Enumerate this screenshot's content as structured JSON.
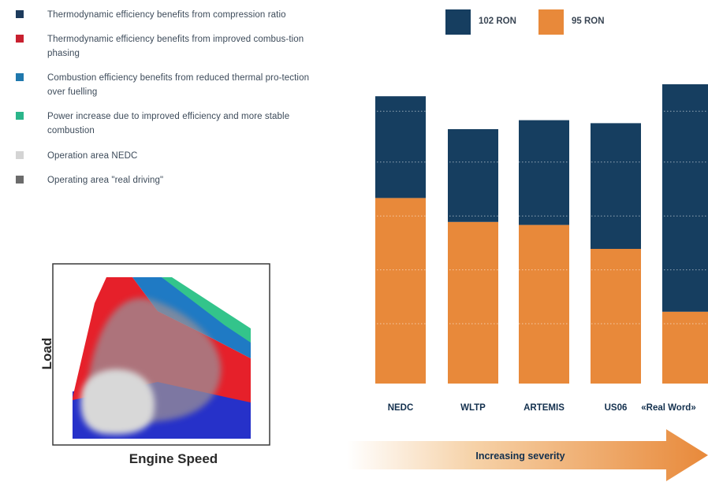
{
  "legend": {
    "items": [
      {
        "color": "#1d3b5c",
        "text": "Thermodynamic efficiency benefits from compression ratio"
      },
      {
        "color": "#c8202f",
        "text": "Thermodynamic efficiency benefits from improved combus-tion phasing"
      },
      {
        "color": "#1f78ad",
        "text": "Combustion efficiency benefits from reduced thermal pro-tection over fuelling"
      },
      {
        "color": "#2bb58a",
        "text": "Power increase due to improved efficiency and more stable combustion"
      },
      {
        "color": "#d4d4d4",
        "text": "Operation area NEDC"
      },
      {
        "color": "#6b6b6b",
        "text": "Operating area \"real driving\""
      }
    ]
  },
  "engine_map": {
    "ylabel": "Load",
    "xlabel": "Engine Speed"
  },
  "chart_data": {
    "type": "bar",
    "stacked": true,
    "categories": [
      "NEDC",
      "WLTP",
      "ARTEMIS",
      "US06",
      "«Real Word»"
    ],
    "series": [
      {
        "name": "95 RON",
        "color": "#e8893a",
        "values": [
          0.62,
          0.54,
          0.53,
          0.45,
          0.24
        ]
      },
      {
        "name": "102 RON",
        "color": "#163e60",
        "values": [
          0.34,
          0.31,
          0.35,
          0.42,
          0.76
        ]
      }
    ],
    "ylim": [
      0,
      1
    ],
    "grid": true,
    "legend_position": "top",
    "arrow_label": "Increasing severity"
  }
}
